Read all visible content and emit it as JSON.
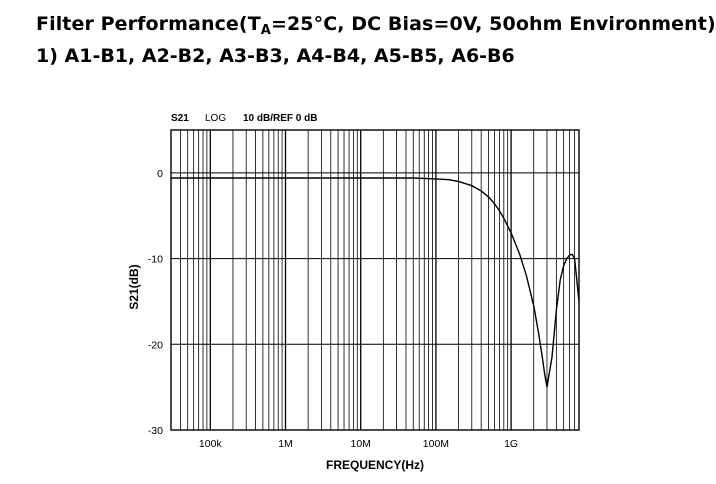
{
  "heading": {
    "title_prefix": "Filter Performance(T",
    "title_sub": "A",
    "title_suffix": "=25°C, DC Bias=0V, 50ohm Environment)",
    "subtitle": "1) A1-B1, A2-B2, A3-B3, A4-B4, A5-B5, A6-B6"
  },
  "chart_data": {
    "type": "line",
    "header": {
      "param": "S21",
      "format": "LOG",
      "scale": "10 dB/REF 0 dB"
    },
    "xlabel": "FREQUENCY(Hz)",
    "ylabel": "S21(dB)",
    "x_scale": "log",
    "xlim": [
      30000,
      8000000000
    ],
    "ylim": [
      -30,
      5
    ],
    "x_ticks": [
      {
        "value": 100000,
        "label": "100k"
      },
      {
        "value": 1000000,
        "label": "1M"
      },
      {
        "value": 10000000,
        "label": "10M"
      },
      {
        "value": 100000000,
        "label": "100M"
      },
      {
        "value": 1000000000,
        "label": "1G"
      }
    ],
    "y_ticks": [
      {
        "value": 0,
        "label": "0"
      },
      {
        "value": -10,
        "label": "-10"
      },
      {
        "value": -20,
        "label": "-20"
      },
      {
        "value": -30,
        "label": "-30"
      }
    ],
    "grid": true,
    "series": [
      {
        "color": "#000000",
        "x": [
          30000,
          100000,
          1000000,
          10000000,
          50000000,
          100000000,
          150000000,
          200000000,
          300000000,
          400000000,
          500000000,
          600000000,
          700000000,
          800000000,
          1000000000,
          1300000000,
          1600000000,
          2000000000,
          2300000000,
          2600000000,
          2800000000,
          3000000000,
          3200000000,
          3500000000,
          4000000000,
          4500000000,
          5000000000,
          5500000000,
          6000000000,
          6500000000,
          7000000000,
          8000000000
        ],
        "y": [
          -0.6,
          -0.6,
          -0.6,
          -0.6,
          -0.6,
          -0.7,
          -0.8,
          -1.0,
          -1.5,
          -2.1,
          -2.8,
          -3.6,
          -4.4,
          -5.3,
          -7.0,
          -9.5,
          -12.0,
          -15.5,
          -18.5,
          -21.5,
          -23.5,
          -25.0,
          -23.5,
          -21.5,
          -16.0,
          -12.5,
          -10.8,
          -10.0,
          -9.6,
          -9.5,
          -10.0,
          -15.0
        ]
      }
    ]
  }
}
